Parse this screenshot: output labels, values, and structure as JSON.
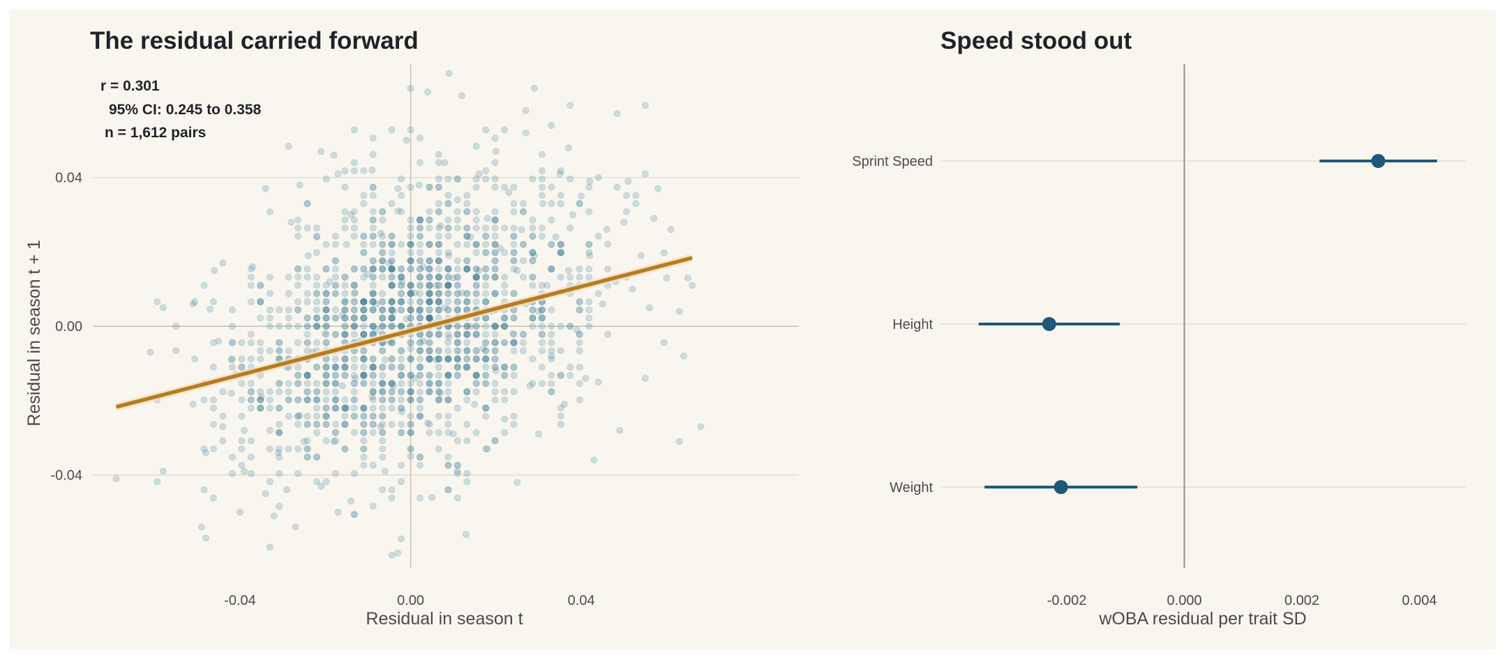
{
  "colors": {
    "background": "#f9f6f0",
    "point": "#3d7a93",
    "trend_line": "#b87c21",
    "trend_band": "#f2e1c4",
    "forest": "#1e5878",
    "grid": "#e4ddd1",
    "zero_line": "#999999"
  },
  "chart_data": [
    {
      "type": "scatter",
      "title": "The residual carried forward",
      "xlabel": "Residual in season t",
      "ylabel": "Residual in season t + 1",
      "xlim": [
        -0.0745,
        0.091
      ],
      "ylim": [
        -0.065,
        0.0705
      ],
      "xticks": [
        -0.04,
        0.0,
        0.04
      ],
      "xtick_labels": [
        "-0.04",
        "0.00",
        "0.04"
      ],
      "yticks": [
        -0.04,
        0.0,
        0.04
      ],
      "ytick_labels": [
        "-0.04",
        "0.00",
        "0.04"
      ],
      "grid": "horizontal",
      "point_count": 1612,
      "correlation": 0.301,
      "trend_line": {
        "x": [
          -0.069,
          0.066
        ],
        "y": [
          -0.0217,
          0.0184
        ]
      },
      "annotations": [
        "r = 0.301",
        "95% CI: 0.245 to 0.358",
        "n = 1,612 pairs"
      ],
      "sample_points": [
        [
          -0.069,
          -0.041
        ],
        [
          -0.058,
          -0.039
        ],
        [
          -0.061,
          -0.007
        ],
        [
          -0.058,
          0.005
        ],
        [
          -0.055,
          0.0
        ],
        [
          -0.051,
          -0.021
        ],
        [
          -0.051,
          0.006
        ],
        [
          -0.049,
          -0.054
        ],
        [
          -0.048,
          -0.057
        ],
        [
          -0.048,
          -0.034
        ],
        [
          -0.046,
          0.015
        ],
        [
          -0.045,
          -0.004
        ],
        [
          -0.047,
          0.0046
        ],
        [
          -0.044,
          0.017
        ],
        [
          -0.042,
          -0.009
        ],
        [
          -0.042,
          -0.018
        ],
        [
          -0.041,
          -0.013
        ],
        [
          -0.04,
          -0.05
        ],
        [
          -0.039,
          -0.039
        ],
        [
          -0.039,
          -0.028
        ],
        [
          -0.037,
          0.016
        ],
        [
          -0.035,
          -0.019
        ],
        [
          -0.034,
          0.037
        ],
        [
          -0.034,
          -0.045
        ],
        [
          -0.033,
          -0.028
        ],
        [
          -0.031,
          -0.034
        ],
        [
          -0.032,
          -0.051
        ],
        [
          -0.029,
          -0.044
        ],
        [
          -0.029,
          -0.011
        ],
        [
          -0.028,
          0.028
        ],
        [
          -0.027,
          -0.054
        ],
        [
          -0.026,
          -0.024
        ],
        [
          -0.026,
          0.038
        ],
        [
          -0.025,
          -0.031
        ],
        [
          -0.024,
          0.019
        ],
        [
          -0.023,
          -0.007
        ],
        [
          -0.022,
          0.024
        ],
        [
          -0.021,
          0.047
        ],
        [
          -0.021,
          -0.043
        ],
        [
          -0.02,
          -0.002
        ],
        [
          -0.019,
          0.012
        ],
        [
          -0.018,
          -0.031
        ],
        [
          -0.017,
          0.041
        ],
        [
          -0.017,
          -0.05
        ],
        [
          -0.016,
          -0.016
        ],
        [
          -0.016,
          0.003
        ],
        [
          -0.015,
          0.022
        ],
        [
          -0.015,
          -0.022
        ],
        [
          -0.014,
          0.03
        ],
        [
          -0.014,
          -0.047
        ],
        [
          -0.013,
          0.009
        ],
        [
          -0.013,
          -0.014
        ],
        [
          -0.012,
          -0.004
        ],
        [
          -0.011,
          0.033
        ],
        [
          -0.011,
          -0.033
        ],
        [
          -0.01,
          0.014
        ],
        [
          -0.009,
          -0.019
        ],
        [
          -0.009,
          0.042
        ],
        [
          -0.008,
          -0.001
        ],
        [
          -0.008,
          0.006
        ],
        [
          -0.007,
          -0.027
        ],
        [
          -0.007,
          0.025
        ],
        [
          -0.006,
          -0.009
        ],
        [
          -0.006,
          -0.039
        ],
        [
          -0.005,
          0.017
        ],
        [
          -0.005,
          -0.004
        ],
        [
          -0.004,
          0.004
        ],
        [
          -0.004,
          -0.016
        ],
        [
          -0.003,
          0.031
        ],
        [
          -0.003,
          -0.061
        ],
        [
          -0.002,
          0.012
        ],
        [
          -0.002,
          -0.023
        ],
        [
          -0.001,
          0.002
        ],
        [
          -0.001,
          0.05
        ],
        [
          0.0,
          -0.006
        ],
        [
          0.0,
          0.022
        ],
        [
          0.0,
          -0.035
        ],
        [
          0.001,
          0.009
        ],
        [
          0.001,
          -0.014
        ],
        [
          0.002,
          0.004
        ],
        [
          0.002,
          0.038
        ],
        [
          0.003,
          -0.004
        ],
        [
          0.003,
          0.016
        ],
        [
          0.004,
          -0.026
        ],
        [
          0.004,
          0.063
        ],
        [
          0.005,
          0.001
        ],
        [
          0.005,
          -0.046
        ],
        [
          0.006,
          0.011
        ],
        [
          0.006,
          -0.009
        ],
        [
          0.007,
          0.027
        ],
        [
          0.007,
          -0.018
        ],
        [
          0.008,
          0.005
        ],
        [
          0.008,
          0.044
        ],
        [
          0.009,
          -0.003
        ],
        [
          0.009,
          0.019
        ],
        [
          0.01,
          -0.029
        ],
        [
          0.01,
          0.013
        ],
        [
          0.011,
          -0.039
        ],
        [
          0.011,
          0.034
        ],
        [
          0.012,
          0.009
        ],
        [
          0.012,
          0.062
        ],
        [
          0.013,
          -0.011
        ],
        [
          0.013,
          -0.056
        ],
        [
          0.014,
          0.024
        ],
        [
          0.014,
          0.0
        ],
        [
          0.015,
          -0.021
        ],
        [
          0.016,
          0.041
        ],
        [
          0.016,
          0.015
        ],
        [
          0.017,
          -0.006
        ],
        [
          0.018,
          0.029
        ],
        [
          0.018,
          -0.033
        ],
        [
          0.019,
          0.004
        ],
        [
          0.02,
          0.047
        ],
        [
          0.02,
          -0.012
        ],
        [
          0.021,
          0.021
        ],
        [
          0.022,
          -0.025
        ],
        [
          0.022,
          0.009
        ],
        [
          0.023,
          0.036
        ],
        [
          0.024,
          -0.002
        ],
        [
          0.025,
          0.015
        ],
        [
          0.025,
          -0.042
        ],
        [
          0.026,
          0.026
        ],
        [
          0.027,
          0.006
        ],
        [
          0.027,
          0.058
        ],
        [
          0.028,
          -0.016
        ],
        [
          0.029,
          0.019
        ],
        [
          0.03,
          0.004
        ],
        [
          0.03,
          -0.029
        ],
        [
          0.031,
          0.033
        ],
        [
          0.032,
          0.011
        ],
        [
          0.033,
          0.054
        ],
        [
          0.033,
          -0.008
        ],
        [
          0.034,
          0.024
        ],
        [
          0.035,
          0.041
        ],
        [
          0.036,
          -0.021
        ],
        [
          0.037,
          0.015
        ],
        [
          0.038,
          0.03
        ],
        [
          0.039,
          -0.001
        ],
        [
          0.04,
          0.035
        ],
        [
          0.041,
          -0.014
        ],
        [
          0.042,
          0.019
        ],
        [
          0.043,
          -0.036
        ],
        [
          0.044,
          0.04
        ],
        [
          0.045,
          0.006
        ],
        [
          0.046,
          0.026
        ],
        [
          0.048,
          0.012
        ],
        [
          0.049,
          -0.028
        ],
        [
          0.05,
          0.028
        ],
        [
          0.051,
          0.039
        ],
        [
          0.052,
          0.01
        ],
        [
          0.054,
          0.019
        ],
        [
          0.055,
          -0.014
        ],
        [
          0.055,
          0.041
        ],
        [
          0.056,
          0.005
        ],
        [
          0.058,
          0.037
        ],
        [
          0.06,
          0.013
        ],
        [
          0.061,
          0.026
        ],
        [
          0.063,
          -0.031
        ],
        [
          0.063,
          0.004
        ],
        [
          0.064,
          -0.008
        ],
        [
          0.065,
          0.013
        ],
        [
          0.066,
          0.011
        ],
        [
          0.068,
          -0.027
        ],
        [
          0.027,
          0.052
        ],
        [
          0.037,
          0.048
        ],
        [
          0.042,
          0.039
        ],
        [
          -0.018,
          0.046
        ],
        [
          0.0,
          0.064
        ],
        [
          0.009,
          0.068
        ],
        [
          0.029,
          0.064
        ],
        [
          -0.003,
          0.037
        ],
        [
          -0.044,
          -0.027
        ],
        [
          0.044,
          -0.015
        ],
        [
          0.057,
          0.029
        ]
      ]
    },
    {
      "type": "forest",
      "title": "Speed stood out",
      "xlabel": "wOBA residual per trait SD",
      "xlim": [
        -0.00415,
        0.00479
      ],
      "xticks": [
        -0.002,
        0.0,
        0.002,
        0.004
      ],
      "xtick_labels": [
        "-0.002",
        "0.000",
        "0.002",
        "0.004"
      ],
      "reference_line": 0.0,
      "categories": [
        "Sprint Speed",
        "Height",
        "Weight"
      ],
      "estimates": [
        0.0033,
        -0.0023,
        -0.0021
      ],
      "ci_low": [
        0.0023,
        -0.0035,
        -0.0034
      ],
      "ci_high": [
        0.0043,
        -0.0011,
        -0.0008
      ]
    }
  ]
}
